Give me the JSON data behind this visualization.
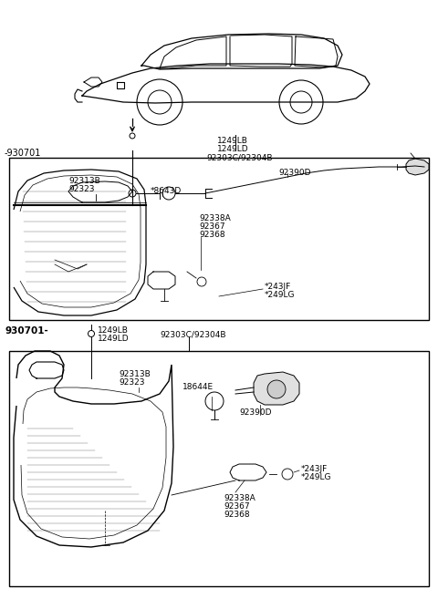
{
  "bg_color": "#ffffff",
  "lc": "#000000",
  "section1_label": "-930701",
  "section2_label": "930701-",
  "t1_labels": [
    "1249LB",
    "1249LD",
    "92303C/92304B"
  ],
  "t2_labels": [
    "1249LB",
    "1249LD",
    "92303C/92304B"
  ],
  "b1_left": [
    "92313B",
    "92323"
  ],
  "b1_mid": [
    "*8643D"
  ],
  "b1_right1": "92390D",
  "b1_right2": [
    "92338A",
    "92367",
    "92368"
  ],
  "b1_bot": [
    "*243JF",
    "*249LG"
  ],
  "b2_left": [
    "92313B",
    "92323"
  ],
  "b2_mid": "18644E",
  "b2_right1": "92390D",
  "b2_bot_right": [
    "*243JF",
    "*249LG"
  ],
  "b2_bot_left": [
    "92338A",
    "92367",
    "92368"
  ]
}
